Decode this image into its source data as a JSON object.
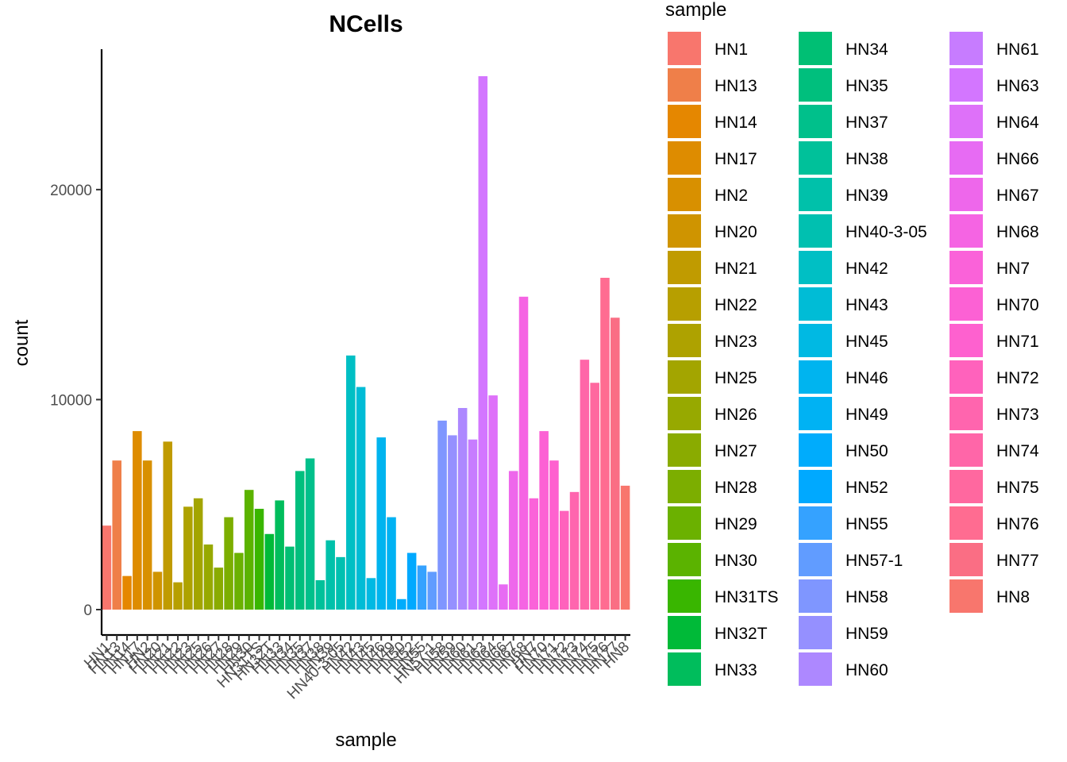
{
  "chart_data": {
    "type": "bar",
    "title": "NCells",
    "xlabel": "sample",
    "ylabel": "count",
    "ylim": [
      0,
      25500
    ],
    "yticks": [
      0,
      10000,
      20000
    ],
    "grid": false,
    "legend": {
      "title": "sample",
      "position": "right",
      "columns": 3
    },
    "categories": [
      "HN1",
      "HN13",
      "HN14",
      "HN17",
      "HN2",
      "HN20",
      "HN21",
      "HN22",
      "HN23",
      "HN25",
      "HN26",
      "HN27",
      "HN28",
      "HN29",
      "HN30",
      "HN31TS",
      "HN32T",
      "HN33",
      "HN34",
      "HN35",
      "HN37",
      "HN38",
      "HN39",
      "HN40-3-05",
      "HN42",
      "HN43",
      "HN45",
      "HN46",
      "HN49",
      "HN50",
      "HN52",
      "HN55",
      "HN57-1",
      "HN58",
      "HN59",
      "HN60",
      "HN61",
      "HN63",
      "HN64",
      "HN66",
      "HN67",
      "HN68",
      "HN7",
      "HN70",
      "HN71",
      "HN72",
      "HN73",
      "HN74",
      "HN75",
      "HN76",
      "HN77",
      "HN8"
    ],
    "values": [
      4000,
      7100,
      1600,
      8500,
      7100,
      1800,
      8000,
      1300,
      4900,
      5300,
      3100,
      2000,
      4400,
      2700,
      5700,
      4800,
      3600,
      5200,
      3000,
      6600,
      7200,
      1400,
      3300,
      2500,
      12100,
      10600,
      1500,
      8200,
      4400,
      500,
      2700,
      2100,
      1800,
      9000,
      8300,
      9600,
      8100,
      25400,
      10200,
      1200,
      6600,
      14900,
      5300,
      8500,
      7100,
      4700,
      5600,
      11900,
      10800,
      15800,
      13900,
      5900
    ],
    "colors": [
      "#F8766D",
      "#EF7F49",
      "#E58700",
      "#DE8C00",
      "#D89000",
      "#CF9400",
      "#C09B00",
      "#B79F00",
      "#AEA200",
      "#A3A500",
      "#97A900",
      "#8AAB00",
      "#7CAE00",
      "#6BB100",
      "#5BB300",
      "#39B600",
      "#00BA38",
      "#00BD5C",
      "#00BF74",
      "#00BF7D",
      "#00C08B",
      "#00C19A",
      "#00C1AA",
      "#00C0B0",
      "#00BFC4",
      "#00BCD6",
      "#00B9E3",
      "#00B4EF",
      "#00B2F3",
      "#00ACFC",
      "#00A9FF",
      "#35A2FF",
      "#619CFF",
      "#7F96FF",
      "#9590FF",
      "#AD88FF",
      "#C77CFF",
      "#D376FF",
      "#DE71F9",
      "#E76BF3",
      "#EE67EB",
      "#F564E3",
      "#FA62D9",
      "#FC61D4",
      "#FE61CF",
      "#FF62BC",
      "#FF65AE",
      "#FF66A8",
      "#FF689F",
      "#FF6C91",
      "#FA6E84",
      "#F8766D"
    ]
  }
}
